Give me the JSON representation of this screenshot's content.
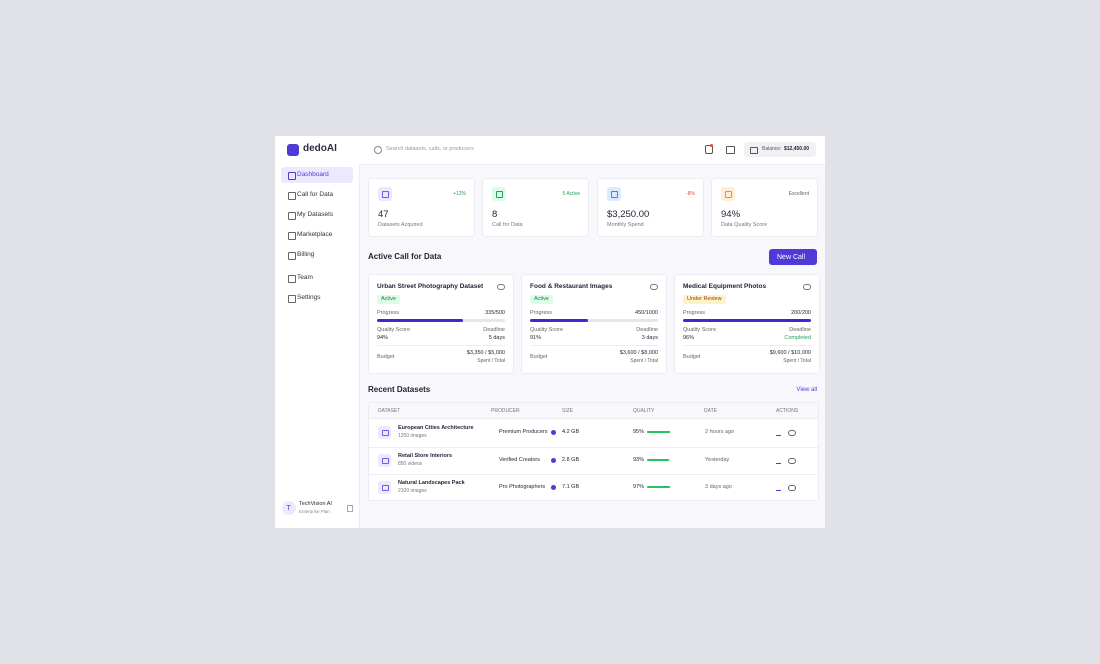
{
  "brand": "dedoAI",
  "search_placeholder": "Search datasets, calls, or producers",
  "balance": {
    "label": "Balance:",
    "value": "$12,450.00"
  },
  "nav": [
    "Dashboard",
    "Call for Data",
    "My Datasets",
    "Marketplace",
    "Billing",
    "Team",
    "Settings"
  ],
  "user": {
    "initial": "T",
    "name": "TechVision AI",
    "plan": "Enterprise Plan"
  },
  "stats": [
    {
      "value": "47",
      "label": "Datasets Acquired",
      "badge": "+12%"
    },
    {
      "value": "8",
      "label": "Call for Data",
      "badge": "5 Active"
    },
    {
      "value": "$3,250.00",
      "label": "Monthly Spend",
      "badge": "-8%"
    },
    {
      "value": "94%",
      "label": "Data Quality Score",
      "badge": "Excellent"
    }
  ],
  "active_calls": {
    "title": "Active Call for Data",
    "button": "New Call",
    "cards": [
      {
        "title": "Urban Street Photography Dataset",
        "status": "Active",
        "progress_label": "Progress",
        "progress": "335/500",
        "progress_percent": 67,
        "quality_label": "Quality Score",
        "quality": "94%",
        "deadline_label": "Deadline",
        "deadline": "5 days",
        "budget_label": "Budget",
        "budget": "$3,350 / $5,000",
        "budget_note": "Spent / Total"
      },
      {
        "title": "Food & Restaurant Images",
        "status": "Active",
        "progress_label": "Progress",
        "progress": "450/1000",
        "progress_percent": 45,
        "quality_label": "Quality Score",
        "quality": "91%",
        "deadline_label": "Deadline",
        "deadline": "3 days",
        "budget_label": "Budget",
        "budget": "$3,600 / $8,000",
        "budget_note": "Spent / Total"
      },
      {
        "title": "Medical Equipment Photos",
        "status": "Under Review",
        "progress_label": "Progress",
        "progress": "200/200",
        "progress_percent": 100,
        "quality_label": "Quality Score",
        "quality": "96%",
        "deadline_label": "Deadline",
        "deadline": "Completed",
        "budget_label": "Budget",
        "budget": "$9,600 / $10,000",
        "budget_note": "Spent / Total"
      }
    ]
  },
  "recent": {
    "title": "Recent Datasets",
    "link": "View all",
    "columns": [
      "DATASET",
      "PRODUCER",
      "SIZE",
      "QUALITY",
      "DATE",
      "ACTIONS"
    ],
    "rows": [
      {
        "name": "European Cities Architecture",
        "count": "1250 images",
        "producer": "Premium Producers",
        "size": "4.2 GB",
        "quality": 95,
        "quality_label": "95%",
        "date": "2 hours ago"
      },
      {
        "name": "Retail Store Interiors",
        "count": "850 videos",
        "producer": "Verified Creators",
        "size": "2.8 GB",
        "quality": 93,
        "quality_label": "93%",
        "date": "Yesterday"
      },
      {
        "name": "Natural Landscapes Pack",
        "count": "2100 images",
        "producer": "Pro Photographers",
        "size": "7.1 GB",
        "quality": 97,
        "quality_label": "97%",
        "date": "3 days ago"
      }
    ]
  }
}
